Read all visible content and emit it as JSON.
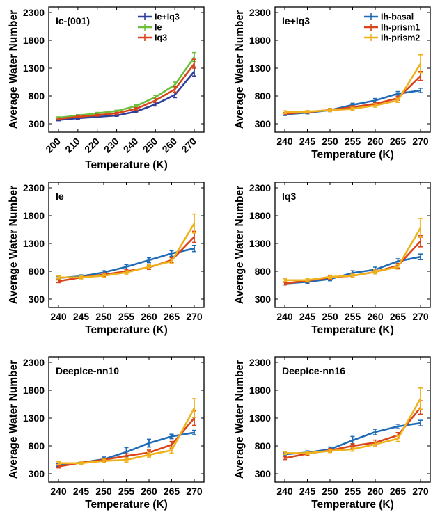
{
  "colors": {
    "blue": "#1f6bb5",
    "red": "#d9441a",
    "yellow": "#efb21d",
    "green": "#6cbf3d",
    "navy": "#2e3f99"
  },
  "chart_data": [
    {
      "type": "line",
      "title": "Ic-(001)",
      "xlabel": "Temperature (K)",
      "ylabel": "Average Water Number",
      "categories": [
        "200",
        "210",
        "220",
        "230",
        "240",
        "250",
        "260",
        "270"
      ],
      "ylim": [
        150,
        2400
      ],
      "yticks": [
        "300",
        "800",
        "1300",
        "1800",
        "2300"
      ],
      "x_tick_rotation": -45,
      "legend_position": "top-right",
      "legend_style": "inside",
      "series": [
        {
          "name": "Ie+Iq3",
          "color": "#2e3f99",
          "values": [
            370,
            400,
            425,
            450,
            520,
            650,
            820,
            1240
          ],
          "errors": [
            15,
            15,
            15,
            15,
            20,
            30,
            50,
            80
          ]
        },
        {
          "name": "Ie",
          "color": "#6cbf3d",
          "values": [
            410,
            450,
            490,
            530,
            620,
            780,
            1000,
            1500
          ],
          "errors": [
            15,
            15,
            15,
            15,
            20,
            30,
            50,
            80
          ]
        },
        {
          "name": "Iq3",
          "color": "#d9441a",
          "values": [
            390,
            425,
            455,
            490,
            570,
            720,
            920,
            1380
          ],
          "errors": [
            15,
            15,
            15,
            15,
            20,
            30,
            50,
            80
          ]
        }
      ]
    },
    {
      "type": "line",
      "title": "Ie+Iq3",
      "xlabel": "Temperature (K)",
      "ylabel": "Average Water Number",
      "categories": [
        "240",
        "245",
        "250",
        "255",
        "260",
        "265",
        "270"
      ],
      "ylim": [
        150,
        2400
      ],
      "yticks": [
        "300",
        "800",
        "1300",
        "1800",
        "2300"
      ],
      "x_tick_rotation": 0,
      "legend_position": "top-right",
      "legend_style": "inside",
      "series": [
        {
          "name": "Ih-basal",
          "color": "#1f6bb5",
          "values": [
            470,
            500,
            545,
            640,
            720,
            840,
            900
          ],
          "errors": [
            20,
            20,
            25,
            30,
            35,
            40,
            40
          ]
        },
        {
          "name": "Ih-prism1",
          "color": "#d9441a",
          "values": [
            480,
            510,
            550,
            600,
            660,
            760,
            1160
          ],
          "errors": [
            20,
            20,
            25,
            25,
            30,
            35,
            80
          ]
        },
        {
          "name": "Ih-prism2",
          "color": "#efb21d",
          "values": [
            510,
            520,
            545,
            570,
            630,
            720,
            1380
          ],
          "errors": [
            25,
            20,
            25,
            25,
            30,
            35,
            160
          ]
        }
      ]
    },
    {
      "type": "line",
      "title": "Ie",
      "xlabel": "Temperature (K)",
      "ylabel": "Average Water Number",
      "categories": [
        "240",
        "245",
        "250",
        "255",
        "260",
        "265",
        "270"
      ],
      "ylim": [
        150,
        2400
      ],
      "yticks": [
        "300",
        "800",
        "1300",
        "1800",
        "2300"
      ],
      "x_tick_rotation": 0,
      "series": [
        {
          "color": "#1f6bb5",
          "values": [
            680,
            710,
            780,
            880,
            1000,
            1120,
            1210
          ],
          "errors": [
            25,
            25,
            30,
            40,
            45,
            50,
            55
          ]
        },
        {
          "color": "#d9441a",
          "values": [
            620,
            690,
            740,
            800,
            870,
            1000,
            1420
          ],
          "errors": [
            25,
            25,
            30,
            30,
            35,
            45,
            100
          ]
        },
        {
          "color": "#efb21d",
          "values": [
            690,
            690,
            720,
            780,
            880,
            980,
            1660
          ],
          "errors": [
            25,
            25,
            30,
            30,
            35,
            40,
            170
          ]
        }
      ]
    },
    {
      "type": "line",
      "title": "Iq3",
      "xlabel": "Temperature (K)",
      "ylabel": "Average Water Number",
      "categories": [
        "240",
        "245",
        "250",
        "255",
        "260",
        "265",
        "270"
      ],
      "ylim": [
        150,
        2400
      ],
      "yticks": [
        "300",
        "800",
        "1300",
        "1800",
        "2300"
      ],
      "x_tick_rotation": 0,
      "series": [
        {
          "color": "#1f6bb5",
          "values": [
            580,
            610,
            660,
            770,
            830,
            980,
            1060
          ],
          "errors": [
            25,
            25,
            30,
            40,
            45,
            45,
            50
          ]
        },
        {
          "color": "#d9441a",
          "values": [
            580,
            630,
            690,
            720,
            790,
            900,
            1340
          ],
          "errors": [
            25,
            25,
            30,
            30,
            35,
            40,
            100
          ]
        },
        {
          "color": "#efb21d",
          "values": [
            640,
            640,
            700,
            720,
            790,
            880,
            1580
          ],
          "errors": [
            25,
            25,
            30,
            30,
            35,
            40,
            170
          ]
        }
      ]
    },
    {
      "type": "line",
      "title": "DeepIce-nn10",
      "xlabel": "Temperature (K)",
      "ylabel": "Average Water Number",
      "categories": [
        "240",
        "245",
        "250",
        "255",
        "260",
        "265",
        "270"
      ],
      "ylim": [
        150,
        2400
      ],
      "yticks": [
        "300",
        "800",
        "1300",
        "1800",
        "2300"
      ],
      "x_tick_rotation": 0,
      "series": [
        {
          "color": "#1f6bb5",
          "values": [
            460,
            500,
            560,
            690,
            850,
            970,
            1040
          ],
          "errors": [
            25,
            25,
            40,
            80,
            70,
            40,
            40
          ]
        },
        {
          "color": "#d9441a",
          "values": [
            430,
            500,
            550,
            620,
            680,
            820,
            1300
          ],
          "errors": [
            25,
            25,
            30,
            40,
            45,
            60,
            130
          ]
        },
        {
          "color": "#efb21d",
          "values": [
            490,
            490,
            530,
            550,
            640,
            720,
            1480
          ],
          "errors": [
            25,
            25,
            30,
            40,
            40,
            50,
            170
          ]
        }
      ]
    },
    {
      "type": "line",
      "title": "DeepIce-nn16",
      "xlabel": "Temperature (K)",
      "ylabel": "Average Water Number",
      "categories": [
        "240",
        "245",
        "250",
        "255",
        "260",
        "265",
        "270"
      ],
      "ylim": [
        150,
        2400
      ],
      "yticks": [
        "300",
        "800",
        "1300",
        "1800",
        "2300"
      ],
      "x_tick_rotation": 0,
      "series": [
        {
          "color": "#1f6bb5",
          "values": [
            650,
            680,
            740,
            900,
            1050,
            1150,
            1210
          ],
          "errors": [
            25,
            30,
            40,
            70,
            50,
            40,
            50
          ]
        },
        {
          "color": "#d9441a",
          "values": [
            580,
            660,
            720,
            800,
            860,
            990,
            1490
          ],
          "errors": [
            25,
            25,
            30,
            40,
            45,
            50,
            120
          ]
        },
        {
          "color": "#efb21d",
          "values": [
            670,
            670,
            710,
            740,
            830,
            930,
            1650
          ],
          "errors": [
            25,
            25,
            30,
            35,
            40,
            50,
            190
          ]
        }
      ]
    }
  ]
}
